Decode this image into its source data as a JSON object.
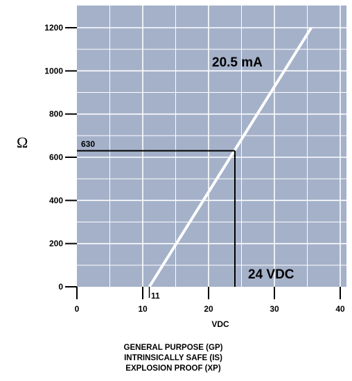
{
  "chart_data": {
    "type": "line",
    "title": "",
    "xlabel": "VDC",
    "ylabel": "Ω",
    "xlim": [
      0,
      40
    ],
    "ylim": [
      0,
      1200
    ],
    "x_ticks": [
      0,
      10,
      20,
      30,
      40
    ],
    "x_tick_labels": [
      "0",
      "10",
      "20",
      "30",
      "40"
    ],
    "y_ticks": [
      0,
      200,
      400,
      600,
      800,
      1000,
      1200
    ],
    "y_tick_labels": [
      "0",
      "200",
      "400",
      "600",
      "800",
      "1000",
      "1200"
    ],
    "grid": true,
    "background_color": "#a4b1c9",
    "series": [
      {
        "name": "20.5 mA",
        "color": "#ffffff",
        "x": [
          11,
          35.6
        ],
        "y": [
          0,
          1200
        ]
      }
    ],
    "annotations": {
      "series_label": "20.5 mA",
      "vdc_label": "24 VDC",
      "marker_x": 24,
      "marker_y": 630,
      "marker_y_label": "630",
      "x_min_label": "11",
      "x_min_value": 11
    }
  },
  "footer": {
    "line1": "GENERAL PURPOSE (GP)",
    "line2": "INTRINSICALLY SAFE (IS)",
    "line3": "EXPLOSION PROOF (XP)"
  }
}
